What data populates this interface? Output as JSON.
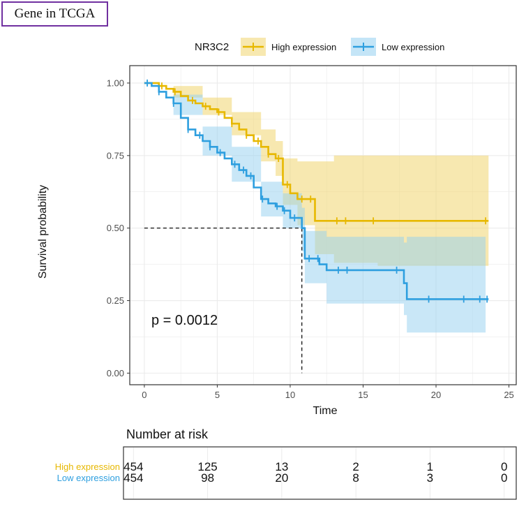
{
  "header": {
    "badge": "Gene in TCGA"
  },
  "colors": {
    "high": "#e7b800",
    "low": "#2e9fdf",
    "high_band": "#f0d670",
    "low_band": "#94cff0",
    "grid": "#ebebeb",
    "panel_border": "#333333"
  },
  "chart_data": {
    "type": "line",
    "subtype": "kaplan-meier",
    "xlabel": "Time",
    "ylabel": "Survival probability",
    "xlim": [
      -1,
      25.5
    ],
    "ylim": [
      -0.04,
      1.06
    ],
    "x_ticks": [
      0,
      5,
      10,
      15,
      20,
      25
    ],
    "y_ticks": [
      0,
      0.25,
      0.5,
      0.75,
      1.0
    ],
    "x_tick_labels": [
      "0",
      "5",
      "10",
      "15",
      "20",
      "25"
    ],
    "y_tick_labels": [
      "0.00",
      "0.25",
      "0.50",
      "0.75",
      "1.00"
    ],
    "legend_title": "NR3C2",
    "legend_position": "top",
    "pvalue_text": "p = 0.0012",
    "median_line": {
      "y": 0.5,
      "x": 10.8
    },
    "series": [
      {
        "name": "High expression",
        "color_key": "high",
        "steps": [
          [
            0,
            1.0
          ],
          [
            0.5,
            1.0
          ],
          [
            1.0,
            0.99
          ],
          [
            1.5,
            0.98
          ],
          [
            2.0,
            0.97
          ],
          [
            2.5,
            0.955
          ],
          [
            3.0,
            0.94
          ],
          [
            3.5,
            0.93
          ],
          [
            4.0,
            0.92
          ],
          [
            4.5,
            0.91
          ],
          [
            5.0,
            0.9
          ],
          [
            5.5,
            0.88
          ],
          [
            6.0,
            0.86
          ],
          [
            6.5,
            0.84
          ],
          [
            7.0,
            0.82
          ],
          [
            7.5,
            0.8
          ],
          [
            8.0,
            0.78
          ],
          [
            8.5,
            0.755
          ],
          [
            9.0,
            0.74
          ],
          [
            9.5,
            0.65
          ],
          [
            10.0,
            0.62
          ],
          [
            10.5,
            0.6
          ],
          [
            11.7,
            0.525
          ],
          [
            23.6,
            0.525
          ]
        ],
        "lower": [
          [
            0,
            1.0
          ],
          [
            2.0,
            0.95
          ],
          [
            4.0,
            0.89
          ],
          [
            6.0,
            0.82
          ],
          [
            8.0,
            0.73
          ],
          [
            9.0,
            0.68
          ],
          [
            9.5,
            0.58
          ],
          [
            10.5,
            0.51
          ],
          [
            11.7,
            0.41
          ],
          [
            13.0,
            0.38
          ],
          [
            16.0,
            0.37
          ],
          [
            23.6,
            0.36
          ]
        ],
        "upper": [
          [
            0,
            1.0
          ],
          [
            2.0,
            0.99
          ],
          [
            4.0,
            0.95
          ],
          [
            6.0,
            0.9
          ],
          [
            8.0,
            0.84
          ],
          [
            9.0,
            0.8
          ],
          [
            9.5,
            0.74
          ],
          [
            10.5,
            0.73
          ],
          [
            11.7,
            0.73
          ],
          [
            13.0,
            0.75
          ],
          [
            23.6,
            0.755
          ]
        ],
        "censor_times": [
          1.2,
          2.1,
          3.3,
          4.2,
          5.1,
          6.0,
          7.0,
          7.8,
          8.5,
          9.2,
          9.8,
          10.8,
          11.4,
          13.2,
          13.8,
          15.7,
          23.4
        ]
      },
      {
        "name": "Low expression",
        "color_key": "low",
        "steps": [
          [
            0,
            1.0
          ],
          [
            0.5,
            0.99
          ],
          [
            1.0,
            0.97
          ],
          [
            1.5,
            0.95
          ],
          [
            2.0,
            0.93
          ],
          [
            2.5,
            0.88
          ],
          [
            3.0,
            0.84
          ],
          [
            3.5,
            0.82
          ],
          [
            4.0,
            0.8
          ],
          [
            4.5,
            0.78
          ],
          [
            5.0,
            0.76
          ],
          [
            5.5,
            0.74
          ],
          [
            6.0,
            0.72
          ],
          [
            6.5,
            0.7
          ],
          [
            7.0,
            0.68
          ],
          [
            7.5,
            0.64
          ],
          [
            8.0,
            0.6
          ],
          [
            8.5,
            0.585
          ],
          [
            9.0,
            0.575
          ],
          [
            9.5,
            0.56
          ],
          [
            10.0,
            0.535
          ],
          [
            10.8,
            0.5
          ],
          [
            11.0,
            0.395
          ],
          [
            12.0,
            0.375
          ],
          [
            12.5,
            0.355
          ],
          [
            17.8,
            0.31
          ],
          [
            18.0,
            0.255
          ],
          [
            23.6,
            0.255
          ]
        ],
        "lower": [
          [
            0,
            1.0
          ],
          [
            2.0,
            0.89
          ],
          [
            4.0,
            0.75
          ],
          [
            6.0,
            0.66
          ],
          [
            8.0,
            0.54
          ],
          [
            9.5,
            0.5
          ],
          [
            10.8,
            0.42
          ],
          [
            11.0,
            0.31
          ],
          [
            12.5,
            0.24
          ],
          [
            17.8,
            0.2
          ],
          [
            18.0,
            0.14
          ],
          [
            23.4,
            0.14
          ]
        ],
        "upper": [
          [
            0,
            1.0
          ],
          [
            2.0,
            0.96
          ],
          [
            4.0,
            0.85
          ],
          [
            6.0,
            0.78
          ],
          [
            8.0,
            0.66
          ],
          [
            9.5,
            0.62
          ],
          [
            10.8,
            0.57
          ],
          [
            11.0,
            0.49
          ],
          [
            12.5,
            0.47
          ],
          [
            17.8,
            0.45
          ],
          [
            18.0,
            0.47
          ],
          [
            23.4,
            0.465
          ]
        ],
        "censor_times": [
          0.2,
          1.0,
          2.0,
          3.0,
          3.8,
          4.5,
          5.2,
          6.2,
          6.8,
          7.3,
          8.1,
          9.1,
          9.6,
          10.3,
          11.3,
          11.9,
          13.3,
          13.9,
          17.3,
          19.5,
          21.9,
          23.0,
          23.5
        ]
      }
    ],
    "risk_table": {
      "title": "Number at risk",
      "times": [
        0,
        5,
        10,
        15,
        20,
        25
      ],
      "rows": [
        {
          "label": "High expression",
          "color_key": "high",
          "values": [
            "454",
            "125",
            "13",
            "2",
            "1",
            "0"
          ]
        },
        {
          "label": "Low expression",
          "color_key": "low",
          "values": [
            "454",
            "98",
            "20",
            "8",
            "3",
            "0"
          ]
        }
      ]
    }
  }
}
